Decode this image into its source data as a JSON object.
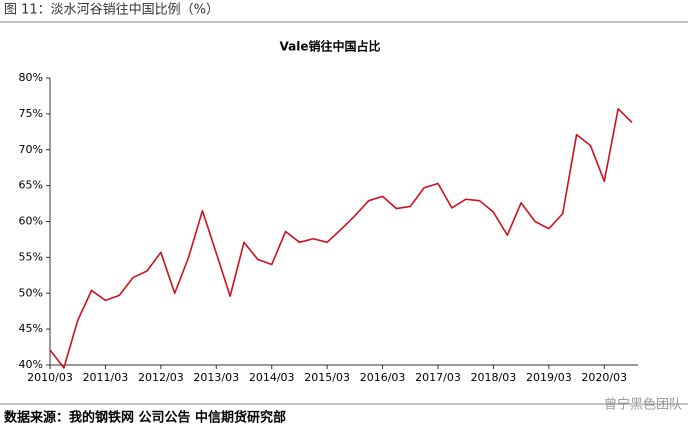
{
  "header": "图 11：淡水河谷销往中国比例（%）",
  "chart_data": {
    "type": "line",
    "title": "Vale销往中国占比",
    "categories": [
      "2010/03",
      null,
      null,
      null,
      "2011/03",
      null,
      null,
      null,
      "2012/03",
      null,
      null,
      null,
      "2013/03",
      null,
      null,
      null,
      "2014/03",
      null,
      null,
      null,
      "2015/03",
      null,
      null,
      null,
      "2016/03",
      null,
      null,
      null,
      "2017/03",
      null,
      null,
      null,
      "2018/03",
      null,
      null,
      null,
      "2019/03",
      null,
      null,
      null,
      "2020/03",
      null,
      null
    ],
    "values": [
      42.1,
      39.6,
      46.2,
      50.4,
      49.0,
      49.7,
      52.2,
      53.1,
      55.7,
      50.0,
      55.0,
      61.5,
      55.6,
      49.6,
      57.1,
      54.7,
      54.0,
      58.6,
      57.1,
      57.6,
      57.1,
      58.9,
      60.8,
      62.9,
      63.5,
      61.8,
      62.1,
      64.7,
      65.3,
      61.9,
      63.1,
      62.9,
      61.3,
      58.1,
      62.6,
      60.0,
      59.0,
      61.1,
      72.1,
      70.6,
      65.6,
      75.7,
      73.8
    ],
    "color": "#d0101e",
    "ylim": [
      40,
      80
    ],
    "yticks": [
      {
        "value": 40,
        "label": "40%"
      },
      {
        "value": 45,
        "label": "45%"
      },
      {
        "value": 50,
        "label": "50%"
      },
      {
        "value": 55,
        "label": "55%"
      },
      {
        "value": 60,
        "label": "60%"
      },
      {
        "value": 65,
        "label": "65%"
      },
      {
        "value": 70,
        "label": "70%"
      },
      {
        "value": 75,
        "label": "75%"
      },
      {
        "value": 80,
        "label": "80%"
      }
    ],
    "grid": false
  },
  "source": "数据来源：我的钢铁网 公司公告 中信期货研究部",
  "watermark": "曾宁黑色团队"
}
